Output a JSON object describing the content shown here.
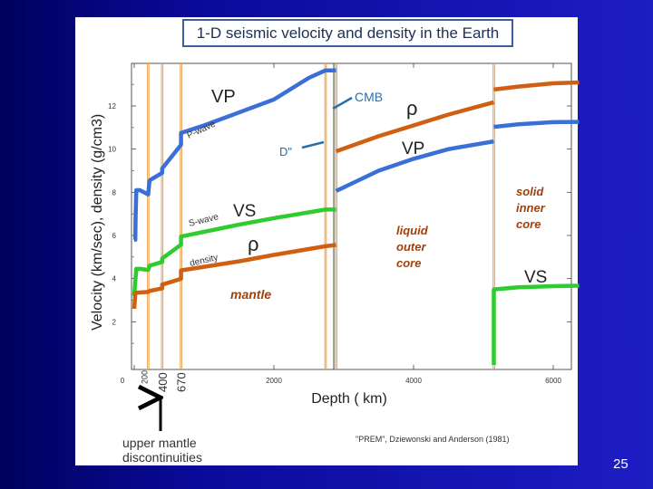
{
  "title": "1-D seismic velocity and density in the Earth",
  "page_number": "25",
  "citation": "\"PREM\",  Dziewonski and Anderson (1981)",
  "arrow_caption_line1": "upper mantle",
  "arrow_caption_line2": "discontinuities",
  "colors": {
    "vp": "#3b6fd8",
    "vs": "#2ecc2e",
    "rho": "#d05f12",
    "discontinuity": "#e8a050",
    "annotation": "#2a6fa8",
    "label_brown": "#a0400a"
  },
  "labels": {
    "vp_mantle": "VP",
    "vs_mantle": "VS",
    "rho_mantle": "ρ",
    "pwave": "P-wave",
    "swave": "S-wave",
    "density": "density",
    "cmb": "CMB",
    "dpp": "D\"",
    "rho_core": "ρ",
    "vp_core": "VP",
    "vs_core": "VS",
    "mantle": "mantle",
    "outer_core_1": "liquid",
    "outer_core_2": "outer",
    "outer_core_3": "core",
    "inner_core_1": "solid",
    "inner_core_2": "inner",
    "inner_core_3": "core"
  },
  "chart_data": {
    "type": "line",
    "title": "1-D seismic velocity and density in the Earth",
    "xlabel": "Depth ( km)",
    "ylabel": "Velocity (km/sec), density (g/cm3)",
    "xlim": [
      0,
      6371
    ],
    "ylim": [
      0,
      14
    ],
    "xticks": [
      0,
      2000,
      4000,
      6000
    ],
    "yticks": [
      2,
      4,
      6,
      8,
      10,
      12
    ],
    "xtick_labels": [
      "0",
      "2000",
      "4000",
      "6000"
    ],
    "ytick_labels": [
      "2",
      "4",
      "6",
      "8",
      "10",
      "12"
    ],
    "extra_xtick_labels": [
      {
        "x": 200,
        "label": "200"
      },
      {
        "x": 400,
        "label": "400"
      },
      {
        "x": 670,
        "label": "670"
      }
    ],
    "discontinuities": [
      200,
      400,
      670,
      2740,
      2891,
      5150
    ],
    "series": [
      {
        "name": "VP",
        "segments": [
          [
            [
              0,
              5.8
            ],
            [
              15,
              5.8
            ],
            [
              20,
              6.8
            ],
            [
              30,
              8.1
            ],
            [
              80,
              8.1
            ],
            [
              200,
              7.9
            ],
            [
              220,
              8.55
            ],
            [
              400,
              8.9
            ],
            [
              400,
              9.1
            ],
            [
              670,
              10.2
            ],
            [
              670,
              10.75
            ],
            [
              1000,
              11.1
            ],
            [
              1500,
              11.7
            ],
            [
              2000,
              12.3
            ],
            [
              2500,
              13.3
            ],
            [
              2740,
              13.65
            ],
            [
              2891,
              13.65
            ]
          ],
          [
            [
              2891,
              8.06
            ],
            [
              3500,
              9.0
            ],
            [
              4000,
              9.55
            ],
            [
              4500,
              10.0
            ],
            [
              5150,
              10.36
            ]
          ],
          [
            [
              5150,
              11.03
            ],
            [
              5500,
              11.15
            ],
            [
              6000,
              11.25
            ],
            [
              6371,
              11.26
            ]
          ]
        ]
      },
      {
        "name": "VS",
        "segments": [
          [
            [
              0,
              3.2
            ],
            [
              15,
              3.9
            ],
            [
              30,
              4.45
            ],
            [
              80,
              4.45
            ],
            [
              200,
              4.4
            ],
            [
              220,
              4.6
            ],
            [
              400,
              4.77
            ],
            [
              400,
              4.93
            ],
            [
              670,
              5.57
            ],
            [
              670,
              5.95
            ],
            [
              1500,
              6.5
            ],
            [
              2000,
              6.8
            ],
            [
              2740,
              7.2
            ],
            [
              2891,
              7.2
            ]
          ],
          [
            [
              5150,
              0.0
            ],
            [
              5150,
              3.5
            ],
            [
              5500,
              3.6
            ],
            [
              6000,
              3.65
            ],
            [
              6371,
              3.67
            ]
          ]
        ]
      },
      {
        "name": "ρ",
        "segments": [
          [
            [
              0,
              2.6
            ],
            [
              15,
              3.3
            ],
            [
              30,
              3.35
            ],
            [
              200,
              3.38
            ],
            [
              220,
              3.43
            ],
            [
              400,
              3.55
            ],
            [
              400,
              3.72
            ],
            [
              670,
              3.99
            ],
            [
              670,
              4.38
            ],
            [
              1500,
              4.8
            ],
            [
              2000,
              5.1
            ],
            [
              2740,
              5.5
            ],
            [
              2891,
              5.56
            ]
          ],
          [
            [
              2891,
              9.9
            ],
            [
              3500,
              10.6
            ],
            [
              4000,
              11.1
            ],
            [
              4500,
              11.6
            ],
            [
              5150,
              12.17
            ]
          ],
          [
            [
              5150,
              12.76
            ],
            [
              5500,
              12.9
            ],
            [
              6000,
              13.05
            ],
            [
              6371,
              13.09
            ]
          ]
        ]
      }
    ]
  }
}
